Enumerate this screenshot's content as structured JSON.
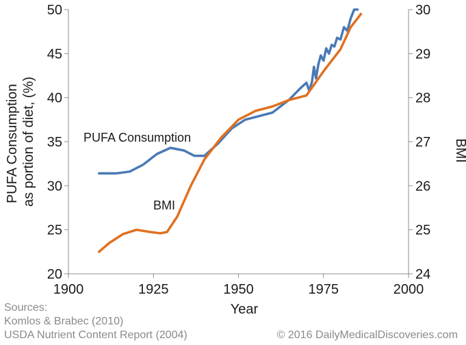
{
  "chart_data": {
    "type": "line",
    "x_axis": {
      "label": "Year",
      "range": [
        1900,
        2000
      ],
      "ticks": [
        1900,
        1925,
        1950,
        1975,
        2000
      ]
    },
    "y_axis_left": {
      "label": "PUFA Consumption as portion of diet, (%)",
      "label_lines": [
        "PUFA Consumption",
        "as portion of diet, (%)"
      ],
      "range": [
        20,
        50
      ],
      "ticks": [
        20,
        25,
        30,
        35,
        40,
        45,
        50
      ]
    },
    "y_axis_right": {
      "label": "BMI",
      "range": [
        24,
        30
      ],
      "ticks": [
        24,
        25,
        26,
        27,
        28,
        29,
        30
      ]
    },
    "series": [
      {
        "name": "PUFA Consumption",
        "label": "PUFA Consumption",
        "axis": "left",
        "color": "#4a7ab6",
        "x": [
          1909,
          1914,
          1918,
          1922,
          1926,
          1930,
          1934,
          1937,
          1940,
          1944,
          1948,
          1952,
          1956,
          1960,
          1965,
          1968,
          1970,
          1970.8,
          1971.6,
          1972.2,
          1972.8,
          1973.5,
          1974.2,
          1975,
          1975.8,
          1976.6,
          1977.4,
          1978.2,
          1979,
          1980,
          1981,
          1982,
          1983,
          1984,
          1985
        ],
        "values": [
          31.4,
          31.4,
          31.6,
          32.4,
          33.6,
          34.3,
          34.0,
          33.4,
          33.4,
          34.8,
          36.5,
          37.5,
          37.9,
          38.3,
          39.8,
          41.0,
          41.7,
          40.8,
          41.8,
          43.5,
          42.2,
          43.8,
          44.8,
          44.2,
          45.6,
          45.0,
          46.0,
          45.8,
          46.8,
          46.6,
          48.0,
          47.6,
          49.0,
          50.0,
          50.0
        ]
      },
      {
        "name": "BMI",
        "label": "BMI",
        "axis": "right",
        "color": "#e07020",
        "x": [
          1909,
          1912,
          1916,
          1920,
          1924,
          1927,
          1929,
          1932,
          1936,
          1940,
          1945,
          1950,
          1955,
          1960,
          1965,
          1970,
          1975,
          1980,
          1983,
          1985,
          1986
        ],
        "values": [
          24.5,
          24.7,
          24.9,
          25.0,
          24.95,
          24.92,
          24.95,
          25.3,
          26.0,
          26.6,
          27.1,
          27.5,
          27.7,
          27.8,
          27.95,
          28.05,
          28.6,
          29.1,
          29.6,
          29.8,
          29.9
        ]
      }
    ]
  },
  "footer": {
    "sources_label": "Sources:",
    "source_1": "Komlos & Brabec (2010)",
    "source_2": "USDA Nutrient Content Report (2004)",
    "credit": "© 2016 DailyMedicalDiscoveries.com"
  }
}
